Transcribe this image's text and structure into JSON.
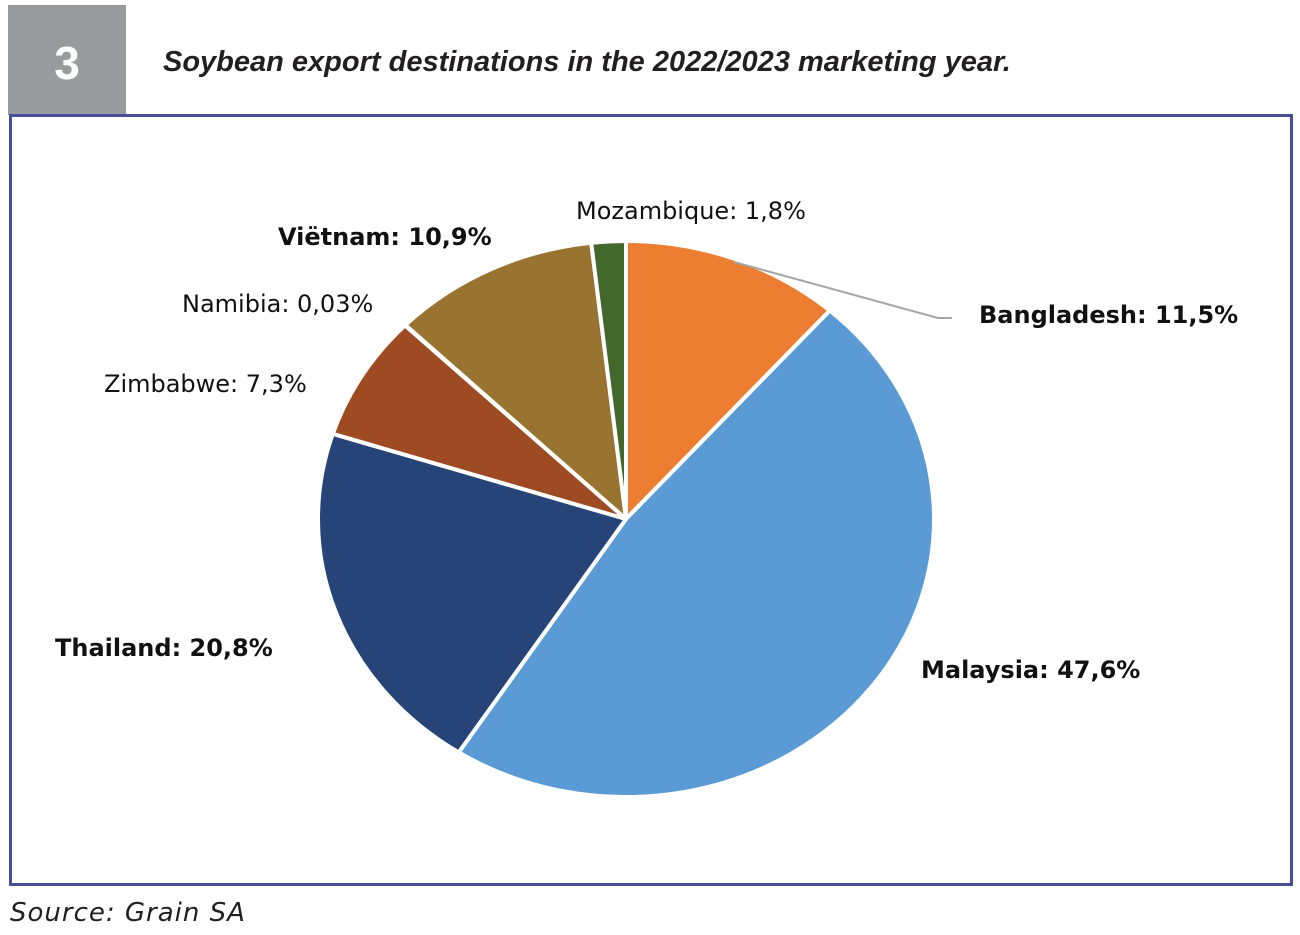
{
  "figure": {
    "number": "3",
    "title": "Soybean export destinations in the 2022/2023 marketing year.",
    "source": "Source: Grain SA",
    "frame_color": "#46509a",
    "number_bg_color": "#9a9b9d"
  },
  "chart_data": {
    "type": "pie",
    "title": "",
    "slices": [
      {
        "label": "Bangladesh",
        "value": 11.5,
        "display": "Bangladesh: 11,5%",
        "color": "#ed7d31",
        "bold": true
      },
      {
        "label": "Malaysia",
        "value": 47.6,
        "display": "Malaysia: 47,6%",
        "color": "#5b9bd5",
        "bold": true
      },
      {
        "label": "Thailand",
        "value": 20.8,
        "display": "Thailand: 20,8%",
        "color": "#264478",
        "bold": true
      },
      {
        "label": "Zimbabwe",
        "value": 7.3,
        "display": "Zimbabwe: 7,3%",
        "color": "#9e4a22",
        "bold": false
      },
      {
        "label": "Namibia",
        "value": 0.03,
        "display": "Namibia: 0,03%",
        "color": "#636363",
        "bold": false
      },
      {
        "label": "Viëtnam",
        "value": 10.9,
        "display": "Viëtnam: 10,9%",
        "color": "#997330",
        "bold": true
      },
      {
        "label": "Mozambique",
        "value": 1.8,
        "display": "Mozambique: 1,8%",
        "color": "#43682b",
        "bold": false
      }
    ],
    "start": "12 o'clock",
    "direction": "clockwise",
    "legend": "none (labels on chart)"
  }
}
